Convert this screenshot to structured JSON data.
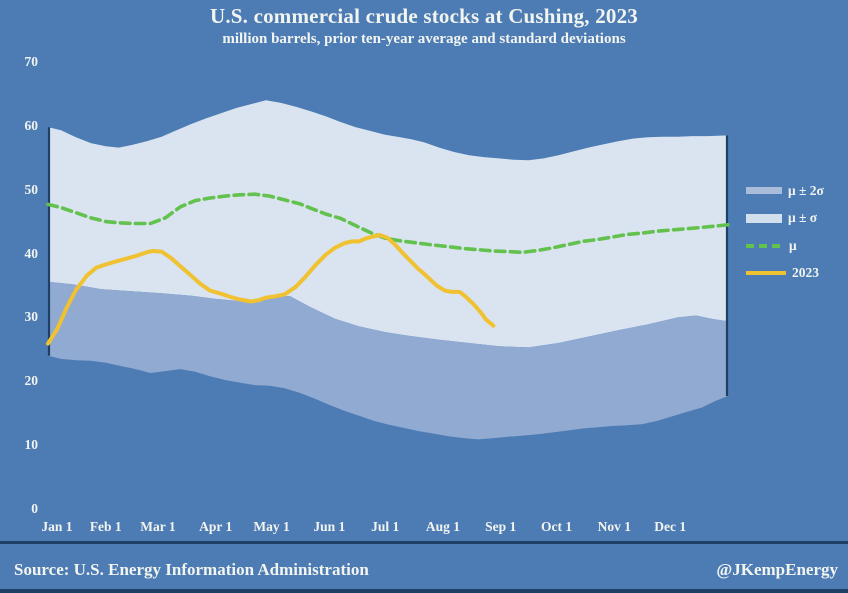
{
  "title": "U.S. commercial crude stocks at Cushing, 2023",
  "subtitle": "million barrels, prior ten-year average and standard deviations",
  "footer": {
    "source": "Source: U.S. Energy Information Administration",
    "handle": "@JKempEnergy"
  },
  "colors": {
    "background": "#4d7cb5",
    "band_sigma": "#dae3f0",
    "band_2sigma_lower": "#90aad2",
    "legend_swatch_2sigma": "#a9bcd9",
    "legend_swatch_sigma": "#d4dfee",
    "mu_line": "#63c24e",
    "line_2023": "#f0c131",
    "divider": "#1e4066",
    "text": "#f2f4ef"
  },
  "chart_data": {
    "type": "area",
    "title": "U.S. commercial crude stocks at Cushing, 2023",
    "subtitle": "million barrels, prior ten-year average and standard deviations",
    "unit": "million barrels",
    "x_axis": {
      "tick_labels": [
        "Jan 1",
        "Feb 1",
        "Mar 1",
        "Apr 1",
        "May 1",
        "Jun 1",
        "Jul 1",
        "Aug 1",
        "Sep 1",
        "Oct 1",
        "Nov 1",
        "Dec 1"
      ],
      "tick_days": [
        0,
        31,
        59,
        90,
        120,
        151,
        181,
        212,
        243,
        273,
        304,
        334
      ],
      "range_days": [
        0,
        365
      ]
    },
    "y_axis": {
      "tick_labels": [
        "70",
        "60",
        "50",
        "40",
        "30",
        "20",
        "10",
        "0"
      ],
      "tick_values": [
        70,
        60,
        50,
        40,
        30,
        20,
        10,
        0
      ],
      "range": [
        0,
        70
      ],
      "grid": false
    },
    "legend": [
      {
        "label": "μ ± 2σ",
        "swatch": "band-2sigma",
        "color": "#a9bcd9"
      },
      {
        "label": "μ ± σ",
        "swatch": "band-sigma",
        "color": "#d4dfee"
      },
      {
        "label": "μ",
        "swatch": "dashed-line",
        "color": "#63c24e"
      },
      {
        "label": "2023",
        "swatch": "line",
        "color": "#f0c131"
      }
    ],
    "curves": {
      "mu_plus_sigma": [
        [
          0,
          59.8
        ],
        [
          7,
          59.3
        ],
        [
          15,
          58.2
        ],
        [
          23,
          57.3
        ],
        [
          31,
          56.8
        ],
        [
          38,
          56.6
        ],
        [
          45,
          57.0
        ],
        [
          53,
          57.6
        ],
        [
          61,
          58.3
        ],
        [
          69,
          59.3
        ],
        [
          77,
          60.3
        ],
        [
          85,
          61.2
        ],
        [
          93,
          62.0
        ],
        [
          101,
          62.8
        ],
        [
          109,
          63.4
        ],
        [
          117,
          64.0
        ],
        [
          125,
          63.6
        ],
        [
          133,
          63.0
        ],
        [
          141,
          62.3
        ],
        [
          149,
          61.5
        ],
        [
          157,
          60.6
        ],
        [
          165,
          59.8
        ],
        [
          173,
          59.2
        ],
        [
          181,
          58.6
        ],
        [
          189,
          58.2
        ],
        [
          195,
          57.9
        ],
        [
          202,
          57.4
        ],
        [
          210,
          56.6
        ],
        [
          218,
          55.9
        ],
        [
          226,
          55.4
        ],
        [
          234,
          55.1
        ],
        [
          242,
          54.9
        ],
        [
          250,
          54.7
        ],
        [
          258,
          54.6
        ],
        [
          266,
          54.9
        ],
        [
          274,
          55.4
        ],
        [
          282,
          56.0
        ],
        [
          290,
          56.6
        ],
        [
          298,
          57.1
        ],
        [
          306,
          57.6
        ],
        [
          314,
          58.0
        ],
        [
          322,
          58.2
        ],
        [
          330,
          58.3
        ],
        [
          338,
          58.3
        ],
        [
          346,
          58.4
        ],
        [
          354,
          58.4
        ],
        [
          365,
          58.5
        ]
      ],
      "mu_minus_sigma": [
        [
          0,
          35.6
        ],
        [
          13,
          35.2
        ],
        [
          29,
          34.4
        ],
        [
          45,
          34.1
        ],
        [
          61,
          33.8
        ],
        [
          77,
          33.4
        ],
        [
          90,
          32.9
        ],
        [
          101,
          32.6
        ],
        [
          109,
          32.3
        ],
        [
          115,
          33.0
        ],
        [
          122,
          33.5
        ],
        [
          130,
          33.3
        ],
        [
          141,
          31.6
        ],
        [
          154,
          29.8
        ],
        [
          167,
          28.6
        ],
        [
          181,
          27.7
        ],
        [
          194,
          27.1
        ],
        [
          210,
          26.5
        ],
        [
          226,
          26.0
        ],
        [
          242,
          25.5
        ],
        [
          258,
          25.3
        ],
        [
          274,
          26.0
        ],
        [
          290,
          27.0
        ],
        [
          306,
          28.0
        ],
        [
          322,
          28.9
        ],
        [
          338,
          30.0
        ],
        [
          348,
          30.3
        ],
        [
          356,
          29.8
        ],
        [
          365,
          29.4
        ]
      ],
      "mu_minus_2sigma": [
        [
          0,
          24.0
        ],
        [
          7,
          23.5
        ],
        [
          15,
          23.3
        ],
        [
          23,
          23.2
        ],
        [
          31,
          22.9
        ],
        [
          39,
          22.4
        ],
        [
          47,
          21.9
        ],
        [
          55,
          21.3
        ],
        [
          63,
          21.6
        ],
        [
          71,
          21.9
        ],
        [
          79,
          21.5
        ],
        [
          87,
          20.8
        ],
        [
          95,
          20.2
        ],
        [
          103,
          19.8
        ],
        [
          111,
          19.4
        ],
        [
          119,
          19.3
        ],
        [
          127,
          18.9
        ],
        [
          135,
          18.2
        ],
        [
          143,
          17.3
        ],
        [
          151,
          16.3
        ],
        [
          159,
          15.4
        ],
        [
          167,
          14.6
        ],
        [
          175,
          13.8
        ],
        [
          183,
          13.2
        ],
        [
          191,
          12.7
        ],
        [
          199,
          12.2
        ],
        [
          207,
          11.8
        ],
        [
          215,
          11.4
        ],
        [
          223,
          11.1
        ],
        [
          231,
          10.9
        ],
        [
          239,
          11.1
        ],
        [
          247,
          11.3
        ],
        [
          255,
          11.5
        ],
        [
          263,
          11.7
        ],
        [
          271,
          12.0
        ],
        [
          279,
          12.3
        ],
        [
          287,
          12.6
        ],
        [
          295,
          12.8
        ],
        [
          303,
          13.0
        ],
        [
          311,
          13.1
        ],
        [
          319,
          13.3
        ],
        [
          327,
          13.8
        ],
        [
          335,
          14.5
        ],
        [
          343,
          15.2
        ],
        [
          351,
          15.9
        ],
        [
          358,
          16.9
        ],
        [
          365,
          17.7
        ]
      ],
      "mu": [
        [
          0,
          47.7
        ],
        [
          7,
          47.2
        ],
        [
          15,
          46.4
        ],
        [
          23,
          45.6
        ],
        [
          31,
          45.0
        ],
        [
          39,
          44.8
        ],
        [
          47,
          44.7
        ],
        [
          55,
          44.7
        ],
        [
          63,
          45.6
        ],
        [
          71,
          47.3
        ],
        [
          79,
          48.3
        ],
        [
          87,
          48.7
        ],
        [
          95,
          49.0
        ],
        [
          103,
          49.2
        ],
        [
          111,
          49.3
        ],
        [
          119,
          49.0
        ],
        [
          127,
          48.4
        ],
        [
          135,
          47.8
        ],
        [
          141,
          47.1
        ],
        [
          149,
          46.2
        ],
        [
          157,
          45.5
        ],
        [
          165,
          44.4
        ],
        [
          173,
          43.3
        ],
        [
          181,
          42.4
        ],
        [
          189,
          42.0
        ],
        [
          197,
          41.7
        ],
        [
          205,
          41.4
        ],
        [
          214,
          41.1
        ],
        [
          223,
          40.8
        ],
        [
          231,
          40.6
        ],
        [
          239,
          40.4
        ],
        [
          247,
          40.3
        ],
        [
          255,
          40.2
        ],
        [
          263,
          40.5
        ],
        [
          271,
          40.9
        ],
        [
          279,
          41.4
        ],
        [
          287,
          41.9
        ],
        [
          295,
          42.2
        ],
        [
          303,
          42.6
        ],
        [
          311,
          43.0
        ],
        [
          319,
          43.2
        ],
        [
          327,
          43.5
        ],
        [
          335,
          43.7
        ],
        [
          343,
          43.9
        ],
        [
          351,
          44.1
        ],
        [
          358,
          44.3
        ],
        [
          365,
          44.5
        ]
      ],
      "stocks_2023": [
        [
          0,
          25.9
        ],
        [
          5,
          28.2
        ],
        [
          10,
          31.5
        ],
        [
          15,
          34.3
        ],
        [
          21,
          36.6
        ],
        [
          26,
          37.8
        ],
        [
          31,
          38.3
        ],
        [
          37,
          38.8
        ],
        [
          42,
          39.2
        ],
        [
          47,
          39.6
        ],
        [
          53,
          40.2
        ],
        [
          56,
          40.4
        ],
        [
          61,
          40.3
        ],
        [
          66,
          39.3
        ],
        [
          71,
          38.0
        ],
        [
          77,
          36.5
        ],
        [
          82,
          35.2
        ],
        [
          87,
          34.2
        ],
        [
          93,
          33.7
        ],
        [
          98,
          33.2
        ],
        [
          103,
          32.8
        ],
        [
          109,
          32.5
        ],
        [
          113,
          32.7
        ],
        [
          117,
          33.1
        ],
        [
          122,
          33.3
        ],
        [
          127,
          33.6
        ],
        [
          133,
          34.8
        ],
        [
          138,
          36.3
        ],
        [
          143,
          38.0
        ],
        [
          149,
          39.8
        ],
        [
          154,
          40.9
        ],
        [
          159,
          41.6
        ],
        [
          163,
          41.9
        ],
        [
          167,
          41.9
        ],
        [
          171,
          42.4
        ],
        [
          175,
          42.7
        ],
        [
          178,
          42.9
        ],
        [
          182,
          42.5
        ],
        [
          186,
          41.5
        ],
        [
          190,
          40.2
        ],
        [
          194,
          39.0
        ],
        [
          198,
          37.8
        ],
        [
          202,
          36.8
        ],
        [
          206,
          35.7
        ],
        [
          209,
          34.9
        ],
        [
          213,
          34.2
        ],
        [
          217,
          34.0
        ],
        [
          221,
          34.0
        ],
        [
          224,
          33.3
        ],
        [
          228,
          32.2
        ],
        [
          232,
          30.9
        ],
        [
          235,
          29.7
        ],
        [
          239,
          28.7
        ]
      ],
      "curve_notes": []
    },
    "bands": [
      {
        "label": "μ ± σ",
        "top": "mu_plus_sigma",
        "bottom": "mu_minus_sigma",
        "color": "#dae3f0"
      },
      {
        "label": "μ ± 2σ lower strip",
        "top": "mu_minus_sigma",
        "bottom": "mu_minus_2sigma",
        "color": "#90aad2"
      }
    ],
    "lines": [
      {
        "label": "μ",
        "curve": "mu",
        "color": "#63c24e",
        "dashed": true,
        "width": 3.6
      },
      {
        "label": "2023",
        "curve": "stocks_2023",
        "color": "#f0c131",
        "dashed": false,
        "width": 4
      }
    ],
    "legend_position": "right"
  }
}
